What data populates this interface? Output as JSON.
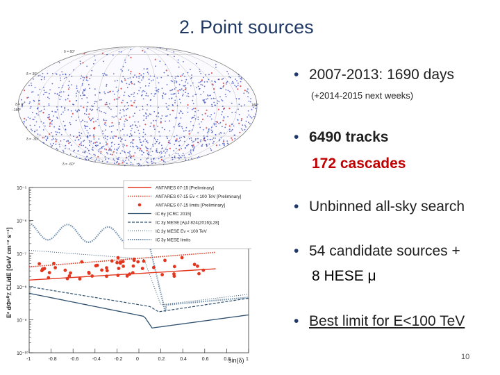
{
  "slide": {
    "title": "2. Point sources",
    "bullet_1": "2007-2013: 1690 days",
    "bullet_1_note": "(+2014-2015 next weeks)",
    "bullet_2_line1": "6490 tracks",
    "bullet_2_line2": "172 cascades",
    "bullet_3": "Unbinned all-sky search",
    "bullet_4_line1": "54 candidate sources +",
    "bullet_4_line2": "8 HESE μ",
    "bullet_5": "Best limit for E<100 TeV",
    "page_number": "10",
    "bullet_symbol": "•"
  },
  "skymap": {
    "lat_labels": [
      "δ = 60°",
      "δ = 30°",
      "δ = 0°",
      "δ = -30°",
      "δ = -60°"
    ],
    "edge_labels": [
      "180°",
      "-180°"
    ]
  },
  "plot": {
    "ylabel": "E² dΦ⁹⁰٪ CL/dE [GeV cm⁻² s⁻¹]",
    "xlabel": "sin(δ)",
    "ytick_labels": [
      "10⁻⁵",
      "10⁻⁶",
      "10⁻⁷",
      "10⁻⁸",
      "10⁻⁹",
      "10⁻¹⁰"
    ],
    "xtick_labels": [
      "-1",
      "-0.8",
      "-0.6",
      "-0.4",
      "-0.2",
      "0",
      "0.2",
      "0.4",
      "0.6",
      "0.8",
      "1"
    ],
    "legend": [
      "ANTARES 07-15 [Preliminary]",
      "ANTARES 07-15 Eν < 100 TeV [Preliminary]",
      "ANTARES 07-15 limits [Preliminary]",
      "IC 6y [ICRC 2015]",
      "IC 3y MESE [ApJ 824(2016)L28]",
      "IC 3y MESE Eν < 100 TeV",
      "IC 3y MESE limits"
    ],
    "colors": {
      "antares": "#e2361f",
      "icecube": "#2e4f6e",
      "dots": "#e2361f",
      "mese_limits": "#6f8fb0"
    }
  }
}
